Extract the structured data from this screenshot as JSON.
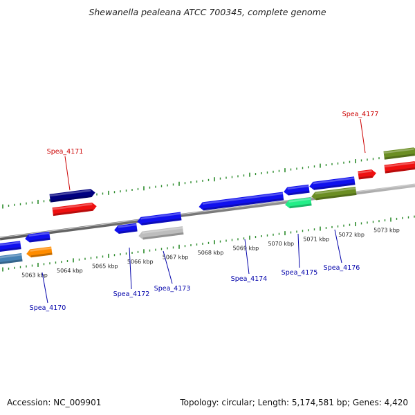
{
  "title": "Shewanella pealeana ATCC 700345, complete genome",
  "footer": {
    "accession": "Accession: NC_009901",
    "summary": "Topology: circular; Length: 5,174,581 bp; Genes: 4,420"
  },
  "colors": {
    "backbone": "#8a8a8a",
    "tick": "#2a8a2a",
    "ruler_text": "#222222",
    "label_red": "#cc0000",
    "label_blue": "#0000aa"
  },
  "ruler": [
    {
      "label": "5063 kbp",
      "pos_kbp": 5063
    },
    {
      "label": "5064 kbp",
      "pos_kbp": 5064
    },
    {
      "label": "5065 kbp",
      "pos_kbp": 5065
    },
    {
      "label": "5066 kbp",
      "pos_kbp": 5066
    },
    {
      "label": "5067 kbp",
      "pos_kbp": 5067
    },
    {
      "label": "5068 kbp",
      "pos_kbp": 5068
    },
    {
      "label": "5069 kbp",
      "pos_kbp": 5069
    },
    {
      "label": "5070 kbp",
      "pos_kbp": 5070
    },
    {
      "label": "5071 kbp",
      "pos_kbp": 5071
    },
    {
      "label": "5072 kbp",
      "pos_kbp": 5072
    },
    {
      "label": "5073 kbp",
      "pos_kbp": 5073
    }
  ],
  "genes": [
    {
      "label": "Spea_4170",
      "strand": "-",
      "color": "#1010ee"
    },
    {
      "label": "",
      "strand": "-",
      "color": "#1010ee"
    },
    {
      "label": "",
      "strand": "-",
      "color": "#4682b4"
    },
    {
      "label": "",
      "strand": "-",
      "color": "#ff8c00"
    },
    {
      "label": "Spea_4171",
      "strand": "+",
      "color": "#000080"
    },
    {
      "label": "",
      "strand": "+",
      "color": "#ee1010"
    },
    {
      "label": "Spea_4172",
      "strand": "-",
      "color": "#1010ee"
    },
    {
      "label": "Spea_4173",
      "strand": "-",
      "color": "#1010ee"
    },
    {
      "label": "",
      "strand": "-",
      "color": "#bdbdbd"
    },
    {
      "label": "Spea_4174",
      "strand": "-",
      "color": "#1010ee"
    },
    {
      "label": "Spea_4175",
      "strand": "-",
      "color": "#1010ee"
    },
    {
      "label": "",
      "strand": "-",
      "color": "#22ee88"
    },
    {
      "label": "Spea_4176",
      "strand": "-",
      "color": "#1010ee"
    },
    {
      "label": "",
      "strand": "-",
      "color": "#6b8e23"
    },
    {
      "label": "Spea_4177",
      "strand": "+",
      "color": "#ee1010"
    },
    {
      "label": "",
      "strand": "+",
      "color": "#6b8e23"
    },
    {
      "label": "",
      "strand": "+",
      "color": "#ee1010"
    }
  ]
}
